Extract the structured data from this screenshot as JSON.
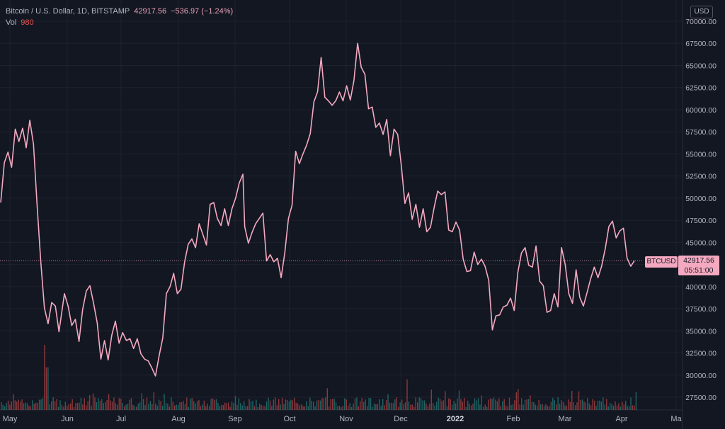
{
  "header": {
    "symbol": "Bitcoin / U.S. Dollar, 1D, BITSTAMP",
    "price": "42917.56",
    "change": "−536.97 (−1.24%)",
    "vol_label": "Vol",
    "vol_value": "980"
  },
  "currency_button": "USD",
  "last_price": {
    "symbol_label": "BTCUSD",
    "value": "42917.56",
    "countdown": "05:51:00"
  },
  "colors": {
    "background": "#131722",
    "line": "#f4a9c0",
    "vol_up": "#26a69a",
    "vol_down": "#ef5350"
  },
  "chart_data": {
    "type": "line",
    "title": "Bitcoin / U.S. Dollar, 1D, BITSTAMP",
    "x_tick_labels": [
      "May",
      "Jun",
      "Jul",
      "Aug",
      "Sep",
      "Oct",
      "Nov",
      "Dec",
      "2022",
      "Feb",
      "Mar",
      "Apr",
      "Ma"
    ],
    "y_tick_labels": [
      "70000.00",
      "67500.00",
      "65000.00",
      "62500.00",
      "60000.00",
      "57500.00",
      "55000.00",
      "52500.00",
      "50000.00",
      "47500.00",
      "45000.00",
      "42500.00",
      "40000.00",
      "37500.00",
      "35000.00",
      "32500.00",
      "30000.00",
      "27500.00"
    ],
    "ylim": [
      26000,
      71000
    ],
    "grid": true,
    "series": [
      {
        "values": [
          [
            "2021-04-27",
            49500
          ],
          [
            "2021-04-29",
            54000
          ],
          [
            "2021-05-01",
            55200
          ],
          [
            "2021-05-03",
            53500
          ],
          [
            "2021-05-05",
            57800
          ],
          [
            "2021-05-07",
            56400
          ],
          [
            "2021-05-09",
            57900
          ],
          [
            "2021-05-11",
            55700
          ],
          [
            "2021-05-13",
            58800
          ],
          [
            "2021-05-15",
            56100
          ],
          [
            "2021-05-17",
            49200
          ],
          [
            "2021-05-19",
            42800
          ],
          [
            "2021-05-21",
            37600
          ],
          [
            "2021-05-23",
            35800
          ],
          [
            "2021-05-25",
            38200
          ],
          [
            "2021-05-27",
            37800
          ],
          [
            "2021-05-29",
            34900
          ],
          [
            "2021-06-01",
            39200
          ],
          [
            "2021-06-03",
            37800
          ],
          [
            "2021-06-05",
            35600
          ],
          [
            "2021-06-07",
            36300
          ],
          [
            "2021-06-09",
            33800
          ],
          [
            "2021-06-11",
            37400
          ],
          [
            "2021-06-13",
            39500
          ],
          [
            "2021-06-15",
            40100
          ],
          [
            "2021-06-17",
            38100
          ],
          [
            "2021-06-19",
            35900
          ],
          [
            "2021-06-21",
            31800
          ],
          [
            "2021-06-23",
            33900
          ],
          [
            "2021-06-25",
            31700
          ],
          [
            "2021-06-27",
            34500
          ],
          [
            "2021-06-29",
            36100
          ],
          [
            "2021-07-01",
            33600
          ],
          [
            "2021-07-03",
            34800
          ],
          [
            "2021-07-05",
            33900
          ],
          [
            "2021-07-07",
            34100
          ],
          [
            "2021-07-09",
            33000
          ],
          [
            "2021-07-11",
            34100
          ],
          [
            "2021-07-13",
            32400
          ],
          [
            "2021-07-15",
            31800
          ],
          [
            "2021-07-17",
            31600
          ],
          [
            "2021-07-19",
            30800
          ],
          [
            "2021-07-21",
            29900
          ],
          [
            "2021-07-23",
            32200
          ],
          [
            "2021-07-25",
            34200
          ],
          [
            "2021-07-27",
            39200
          ],
          [
            "2021-07-29",
            40000
          ],
          [
            "2021-07-31",
            41500
          ],
          [
            "2021-08-02",
            39200
          ],
          [
            "2021-08-04",
            39700
          ],
          [
            "2021-08-06",
            42800
          ],
          [
            "2021-08-08",
            44800
          ],
          [
            "2021-08-10",
            45400
          ],
          [
            "2021-08-12",
            44400
          ],
          [
            "2021-08-14",
            47100
          ],
          [
            "2021-08-16",
            45900
          ],
          [
            "2021-08-18",
            44700
          ],
          [
            "2021-08-20",
            49300
          ],
          [
            "2021-08-22",
            49500
          ],
          [
            "2021-08-24",
            47700
          ],
          [
            "2021-08-26",
            46900
          ],
          [
            "2021-08-28",
            48800
          ],
          [
            "2021-08-30",
            46900
          ],
          [
            "2021-09-01",
            48800
          ],
          [
            "2021-09-03",
            50000
          ],
          [
            "2021-09-05",
            51700
          ],
          [
            "2021-09-07",
            52700
          ],
          [
            "2021-09-08",
            46800
          ],
          [
            "2021-09-10",
            44900
          ],
          [
            "2021-09-12",
            46100
          ],
          [
            "2021-09-14",
            47100
          ],
          [
            "2021-09-16",
            47700
          ],
          [
            "2021-09-18",
            48300
          ],
          [
            "2021-09-20",
            42900
          ],
          [
            "2021-09-22",
            43600
          ],
          [
            "2021-09-24",
            42800
          ],
          [
            "2021-09-26",
            43200
          ],
          [
            "2021-09-28",
            41000
          ],
          [
            "2021-09-30",
            43800
          ],
          [
            "2021-10-02",
            47700
          ],
          [
            "2021-10-04",
            49200
          ],
          [
            "2021-10-06",
            55300
          ],
          [
            "2021-10-08",
            53900
          ],
          [
            "2021-10-10",
            55000
          ],
          [
            "2021-10-12",
            56000
          ],
          [
            "2021-10-14",
            57300
          ],
          [
            "2021-10-16",
            60900
          ],
          [
            "2021-10-18",
            62000
          ],
          [
            "2021-10-20",
            65900
          ],
          [
            "2021-10-22",
            61400
          ],
          [
            "2021-10-24",
            61000
          ],
          [
            "2021-10-26",
            60500
          ],
          [
            "2021-10-28",
            61000
          ],
          [
            "2021-10-30",
            62000
          ],
          [
            "2021-11-01",
            61000
          ],
          [
            "2021-11-03",
            62700
          ],
          [
            "2021-11-05",
            61100
          ],
          [
            "2021-11-07",
            63300
          ],
          [
            "2021-11-09",
            67500
          ],
          [
            "2021-11-11",
            64800
          ],
          [
            "2021-11-13",
            64000
          ],
          [
            "2021-11-15",
            60100
          ],
          [
            "2021-11-17",
            60300
          ],
          [
            "2021-11-19",
            58000
          ],
          [
            "2021-11-21",
            58500
          ],
          [
            "2021-11-23",
            57200
          ],
          [
            "2021-11-25",
            58900
          ],
          [
            "2021-11-27",
            54800
          ],
          [
            "2021-11-29",
            57800
          ],
          [
            "2021-12-01",
            57200
          ],
          [
            "2021-12-03",
            53700
          ],
          [
            "2021-12-05",
            49400
          ],
          [
            "2021-12-07",
            50600
          ],
          [
            "2021-12-09",
            47600
          ],
          [
            "2021-12-11",
            49300
          ],
          [
            "2021-12-13",
            46700
          ],
          [
            "2021-12-15",
            48800
          ],
          [
            "2021-12-17",
            46200
          ],
          [
            "2021-12-19",
            46700
          ],
          [
            "2021-12-21",
            48900
          ],
          [
            "2021-12-23",
            50800
          ],
          [
            "2021-12-25",
            50400
          ],
          [
            "2021-12-27",
            50700
          ],
          [
            "2021-12-29",
            46400
          ],
          [
            "2021-12-31",
            46200
          ],
          [
            "2022-01-02",
            47300
          ],
          [
            "2022-01-04",
            46400
          ],
          [
            "2022-01-06",
            43100
          ],
          [
            "2022-01-08",
            41700
          ],
          [
            "2022-01-10",
            41800
          ],
          [
            "2022-01-12",
            43900
          ],
          [
            "2022-01-14",
            42500
          ],
          [
            "2022-01-16",
            43100
          ],
          [
            "2022-01-18",
            42300
          ],
          [
            "2022-01-20",
            40700
          ],
          [
            "2022-01-22",
            35100
          ],
          [
            "2022-01-24",
            36700
          ],
          [
            "2022-01-26",
            36800
          ],
          [
            "2022-01-28",
            37700
          ],
          [
            "2022-01-30",
            37900
          ],
          [
            "2022-02-01",
            38700
          ],
          [
            "2022-02-03",
            37300
          ],
          [
            "2022-02-05",
            41600
          ],
          [
            "2022-02-07",
            43800
          ],
          [
            "2022-02-09",
            44400
          ],
          [
            "2022-02-11",
            42400
          ],
          [
            "2022-02-13",
            42200
          ],
          [
            "2022-02-15",
            44600
          ],
          [
            "2022-02-17",
            40600
          ],
          [
            "2022-02-19",
            40100
          ],
          [
            "2022-02-21",
            37100
          ],
          [
            "2022-02-23",
            37300
          ],
          [
            "2022-02-25",
            39200
          ],
          [
            "2022-02-27",
            37700
          ],
          [
            "2022-03-01",
            44400
          ],
          [
            "2022-03-03",
            42500
          ],
          [
            "2022-03-05",
            39200
          ],
          [
            "2022-03-07",
            38100
          ],
          [
            "2022-03-09",
            41900
          ],
          [
            "2022-03-11",
            38800
          ],
          [
            "2022-03-13",
            37800
          ],
          [
            "2022-03-15",
            39300
          ],
          [
            "2022-03-17",
            40900
          ],
          [
            "2022-03-19",
            42200
          ],
          [
            "2022-03-21",
            41000
          ],
          [
            "2022-03-23",
            42300
          ],
          [
            "2022-03-25",
            44300
          ],
          [
            "2022-03-27",
            46800
          ],
          [
            "2022-03-29",
            47400
          ],
          [
            "2022-03-31",
            45500
          ],
          [
            "2022-04-02",
            46300
          ],
          [
            "2022-04-04",
            46600
          ],
          [
            "2022-04-06",
            43200
          ],
          [
            "2022-04-08",
            42300
          ],
          [
            "2022-04-10",
            42917.56
          ]
        ]
      }
    ]
  }
}
